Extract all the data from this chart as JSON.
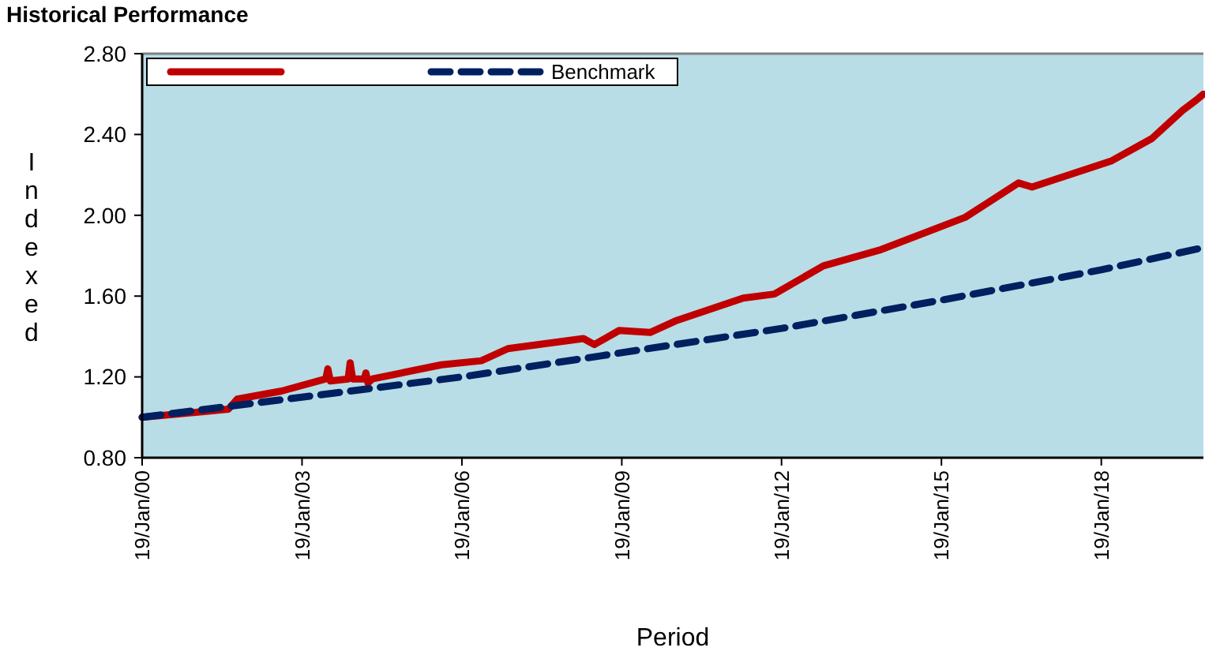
{
  "chart_data": {
    "type": "line",
    "title": "Historical Performance",
    "xlabel": "Period",
    "ylabel": "Indexed",
    "xlim": [
      "2000-01-19",
      "2019-12-20"
    ],
    "xticks": [
      {
        "value": "2000-01-19",
        "label": "19/Jan/00"
      },
      {
        "value": "2003-01-19",
        "label": "19/Jan/03"
      },
      {
        "value": "2006-01-19",
        "label": "19/Jan/06"
      },
      {
        "value": "2009-01-19",
        "label": "19/Jan/09"
      },
      {
        "value": "2012-01-19",
        "label": "19/Jan/12"
      },
      {
        "value": "2015-01-19",
        "label": "19/Jan/15"
      },
      {
        "value": "2018-01-19",
        "label": "19/Jan/18"
      }
    ],
    "ylim": [
      0.8,
      2.8
    ],
    "yticks": [
      {
        "value": 0.8,
        "label": "0.80"
      },
      {
        "value": 1.2,
        "label": "1.20"
      },
      {
        "value": 1.6,
        "label": "1.60"
      },
      {
        "value": 2.0,
        "label": "2.00"
      },
      {
        "value": 2.4,
        "label": "2.40"
      },
      {
        "value": 2.8,
        "label": "2.80"
      }
    ],
    "grid": false,
    "legend": "top left",
    "marker": "none",
    "series": [
      {
        "color": "#c00000",
        "line_style": "solid",
        "x": [
          "2000-01-19",
          "2001-09-01",
          "2001-11-01",
          "2002-09-01",
          "2003-07-01",
          "2003-07-15",
          "2003-08-01",
          "2003-12-01",
          "2003-12-15",
          "2004-01-01",
          "2004-03-20",
          "2004-04-01",
          "2004-04-15",
          "2004-05-15",
          "2005-09-01",
          "2006-06-01",
          "2006-12-01",
          "2008-05-01",
          "2008-07-15",
          "2009-01-01",
          "2009-08-01",
          "2010-02-01",
          "2011-05-01",
          "2011-12-01",
          "2012-11-01",
          "2013-12-01",
          "2015-07-01",
          "2016-07-01",
          "2016-10-01",
          "2018-04-01",
          "2019-01-01",
          "2019-08-01",
          "2019-11-01",
          "2019-12-20"
        ],
        "values": [
          1.0,
          1.04,
          1.09,
          1.13,
          1.19,
          1.24,
          1.18,
          1.19,
          1.27,
          1.19,
          1.19,
          1.22,
          1.17,
          1.19,
          1.26,
          1.28,
          1.34,
          1.39,
          1.36,
          1.43,
          1.42,
          1.48,
          1.59,
          1.61,
          1.75,
          1.83,
          1.99,
          2.16,
          2.14,
          2.27,
          2.38,
          2.52,
          2.57,
          2.6
        ]
      },
      {
        "name": "Benchmark",
        "color": "#002060",
        "line_style": "dashed",
        "x": [
          "2000-01-19",
          "2003-01-19",
          "2006-01-19",
          "2009-01-19",
          "2012-01-19",
          "2015-01-19",
          "2018-01-19",
          "2019-12-20"
        ],
        "values": [
          1.0,
          1.1,
          1.2,
          1.32,
          1.44,
          1.58,
          1.73,
          1.84
        ]
      }
    ]
  }
}
